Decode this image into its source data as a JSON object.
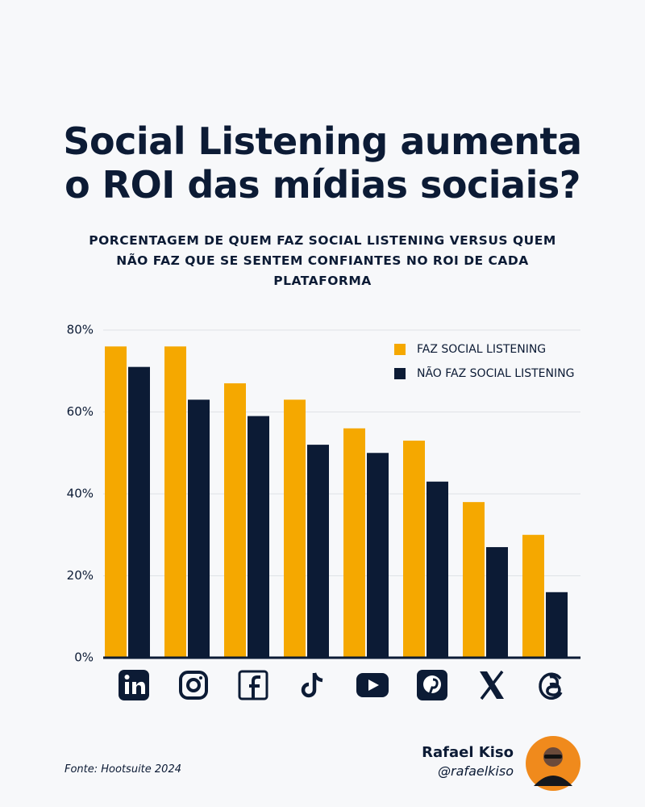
{
  "chart_data": {
    "type": "bar",
    "title": "Social Listening aumenta o ROI das mídias sociais?",
    "subtitle": "PORCENTAGEM DE QUEM FAZ SOCIAL LISTENING VERSUS QUEM NÃO FAZ QUE SE SENTEM CONFIANTES NO ROI DE CADA PLATAFORMA",
    "categories": [
      null,
      null,
      null,
      null,
      null,
      null,
      null,
      null
    ],
    "series": [
      {
        "name": "FAZ SOCIAL LISTENING",
        "color": "#f5a800",
        "values": [
          76,
          76,
          67,
          63,
          56,
          53,
          38,
          30
        ]
      },
      {
        "name": "NÃO FAZ SOCIAL LISTENING",
        "color": "#0c1b35",
        "values": [
          71,
          63,
          59,
          52,
          50,
          43,
          27,
          16
        ]
      }
    ],
    "ylim": [
      0,
      80
    ],
    "yticks": [
      {
        "value": 0,
        "label": "0%"
      },
      {
        "value": 20,
        "label": "20%"
      },
      {
        "value": 40,
        "label": "40%"
      },
      {
        "value": 60,
        "label": "60%"
      },
      {
        "value": 80,
        "label": "80%"
      }
    ],
    "grid": true,
    "legend": "top-right",
    "source": "Fonte: Hootsuite 2024",
    "author": "Rafael Kiso",
    "handle": "@rafaelkiso"
  }
}
